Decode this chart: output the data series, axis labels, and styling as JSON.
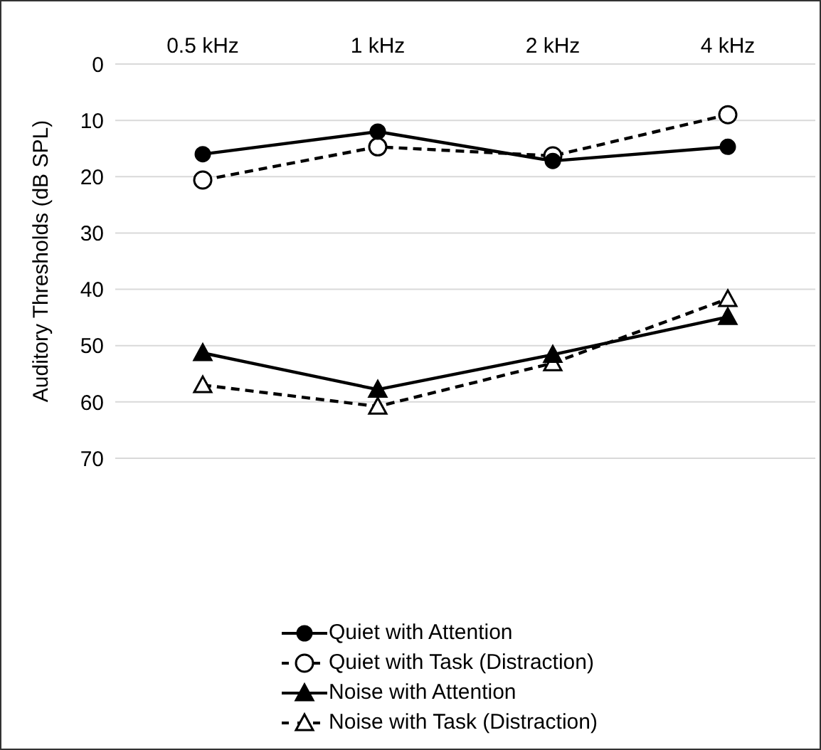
{
  "chart_data": {
    "type": "line",
    "ylabel": "Auditory Thresholds (dB SPL)",
    "categories": [
      "0.5 kHz",
      "1 kHz",
      "2 kHz",
      "4 kHz"
    ],
    "series": [
      {
        "name": "Quiet with Attention",
        "color": "#000000",
        "marker": "circle",
        "line_style": "solid",
        "values": [
          16.0,
          12.0,
          17.2,
          14.7
        ]
      },
      {
        "name": "Quiet with Task (Distraction)",
        "color": "#000000",
        "marker": "circle",
        "line_style": "dashed",
        "values": [
          20.6,
          14.7,
          16.3,
          9.0
        ]
      },
      {
        "name": "Noise with Attention",
        "color": "#000000",
        "marker": "triangle",
        "line_style": "solid",
        "values": [
          51.3,
          57.8,
          51.6,
          44.9
        ]
      },
      {
        "name": "Noise with Task (Distraction)",
        "color": "#000000",
        "marker": "triangle",
        "line_style": "dashed",
        "values": [
          57.0,
          60.8,
          53.1,
          41.7
        ]
      }
    ],
    "ylim": [
      70,
      0
    ],
    "yticks": [
      0,
      10,
      20,
      30,
      40,
      50,
      60,
      70
    ],
    "grid": "y",
    "legend": "bottom"
  }
}
